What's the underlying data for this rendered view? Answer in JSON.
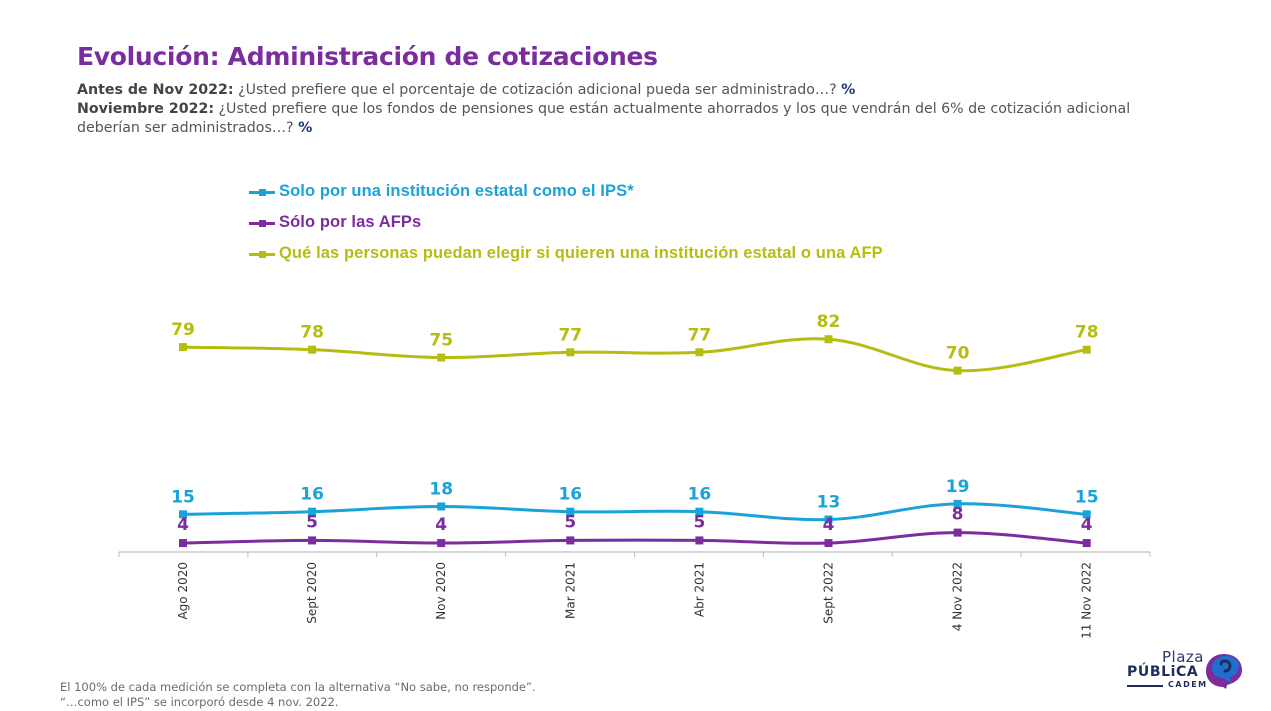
{
  "header": {
    "title": "Evolución: Administración de cotizaciones",
    "q1_label": "Antes de Nov 2022:",
    "q1_text": " ¿Usted prefiere que el porcentaje de cotización adicional pueda ser administrado…? ",
    "q1_unit": "%",
    "q2_label": "Noviembre 2022:",
    "q2_text": " ¿Usted prefiere que los fondos de pensiones que están actualmente ahorrados y los que vendrán del 6% de cotización adicional deberían ser administrados…? ",
    "q2_unit": "%"
  },
  "chart_data": {
    "type": "line",
    "title": "Evolución: Administración de cotizaciones",
    "xlabel": "",
    "ylabel": "%",
    "ylim": [
      0,
      100
    ],
    "grid": false,
    "legend_position": "top",
    "categories": [
      "Ago 2020",
      "Sept 2020",
      "Nov 2020",
      "Mar 2021",
      "Abr 2021",
      "Sept 2022",
      "4 Nov 2022",
      "11 Nov 2022"
    ],
    "series": [
      {
        "name": "Solo por una institución estatal como el IPS*",
        "color": "#1aa3d9",
        "values": [
          15,
          16,
          18,
          16,
          16,
          13,
          19,
          15
        ]
      },
      {
        "name": "Sólo por las AFPs",
        "color": "#7b2d9e",
        "values": [
          4,
          5,
          4,
          5,
          5,
          4,
          8,
          4
        ]
      },
      {
        "name": "Qué las personas puedan elegir si quieren una institución estatal o una AFP",
        "color": "#b5bd10",
        "values": [
          79,
          78,
          75,
          77,
          77,
          82,
          70,
          78
        ]
      }
    ]
  },
  "footer": {
    "note1": "El 100% de cada medición se completa con la alternativa “No sabe, no responde”.",
    "note2": "“…como el IPS” se incorporó desde 4 nov. 2022."
  },
  "logo": {
    "line1": "Plaza",
    "line2": "PÚBLiCA",
    "line3": "CADEM",
    "icon": "speech-bubble-icon"
  },
  "colors": {
    "title": "#7b2d9e",
    "axis": "#bfbfbf"
  }
}
